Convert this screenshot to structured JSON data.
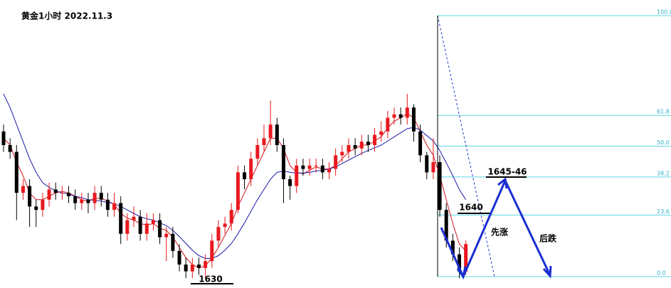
{
  "chart_data": {
    "type": "candlestick",
    "title": "黄金1小时 2022.11.3",
    "ylim": [
      1629.0625,
      1671.25
    ],
    "y2lim": [
      -4.36,
      106
    ],
    "y2ticks": [
      {
        "value": 100,
        "label": "100.0"
      },
      {
        "value": 61.8,
        "label": "61.8"
      },
      {
        "value": 50,
        "label": "50.0"
      },
      {
        "value": 38.2,
        "label": "38.2"
      },
      {
        "value": 23.6,
        "label": "23.6"
      },
      {
        "value": 0,
        "label": "0.0"
      }
    ],
    "fib_color": "#5fd3e3",
    "up_color": "#e8191f",
    "down_color": "#000000",
    "open": [
      1652,
      1650,
      1649,
      1643,
      1644,
      1641,
      1640.5,
      1642,
      1643.5,
      1643,
      1643,
      1642.5,
      1641.5,
      1642,
      1641.5,
      1643,
      1642,
      1640.5,
      1641.5,
      1637,
      1639,
      1639.5,
      1637,
      1638.5,
      1639,
      1636.5,
      1637,
      1634.5,
      1632.5,
      1631.5,
      1632.5,
      1632,
      1633,
      1636,
      1638,
      1638.5,
      1640.5,
      1646,
      1645,
      1648,
      1650,
      1651,
      1653,
      1650,
      1645,
      1644,
      1647,
      1646.5,
      1647,
      1647,
      1646,
      1646.5,
      1648.5,
      1649,
      1650,
      1649.5,
      1650.5,
      1650,
      1651.5,
      1652,
      1654,
      1654.5,
      1654,
      1655.5,
      1652,
      1648.5,
      1646,
      1647.5,
      1640.5,
      1636,
      1634,
      1631.5
    ],
    "high": [
      1653,
      1651,
      1650,
      1645,
      1645,
      1642,
      1643,
      1644.5,
      1644.5,
      1644,
      1644,
      1643.5,
      1643,
      1643,
      1644,
      1644,
      1643,
      1643,
      1642.5,
      1640,
      1641,
      1640.5,
      1640,
      1640,
      1640,
      1638,
      1638,
      1635.5,
      1633.5,
      1633.5,
      1633.5,
      1634,
      1637,
      1639,
      1639.5,
      1641.5,
      1647,
      1647,
      1649,
      1651,
      1653,
      1656.5,
      1654,
      1651,
      1645.5,
      1648,
      1648,
      1648,
      1648,
      1648,
      1647.5,
      1649.5,
      1650,
      1651,
      1651,
      1651.5,
      1651.5,
      1652.5,
      1653.5,
      1655,
      1655.5,
      1655.5,
      1657.5,
      1656,
      1653,
      1649,
      1651,
      1648.5,
      1641.5,
      1637,
      1635,
      1636
    ],
    "low": [
      1649,
      1648,
      1639,
      1642,
      1638,
      1638,
      1639.5,
      1641,
      1642,
      1642,
      1641.5,
      1640.5,
      1640.5,
      1640,
      1640.5,
      1641,
      1639.5,
      1639.5,
      1635.5,
      1636,
      1638,
      1636,
      1636,
      1637.5,
      1635.5,
      1633,
      1633.5,
      1631.5,
      1630.5,
      1630.5,
      1631,
      1630.5,
      1632,
      1635,
      1637,
      1637.5,
      1640,
      1643.5,
      1644,
      1647,
      1649,
      1650,
      1649,
      1641.5,
      1642,
      1643,
      1645.5,
      1645.5,
      1646,
      1645,
      1645,
      1645.5,
      1647.5,
      1648,
      1648.5,
      1648.5,
      1649,
      1649,
      1650.5,
      1651,
      1653,
      1653,
      1653,
      1650.5,
      1647.5,
      1645,
      1645,
      1639.5,
      1635,
      1633,
      1630.5,
      1631
    ],
    "close": [
      1650,
      1649,
      1643,
      1644,
      1641,
      1640.5,
      1642,
      1643.5,
      1643,
      1643,
      1642.5,
      1641.5,
      1642,
      1641.5,
      1643,
      1642,
      1640.5,
      1641.5,
      1637,
      1639,
      1639.5,
      1637,
      1638.5,
      1639,
      1636.5,
      1637,
      1634.5,
      1632.5,
      1631.5,
      1632.5,
      1632,
      1633,
      1636,
      1638,
      1638.5,
      1640.5,
      1646,
      1645,
      1648,
      1650,
      1651,
      1653,
      1650,
      1645,
      1644,
      1647,
      1646.5,
      1647,
      1647,
      1646,
      1646.5,
      1648.5,
      1649,
      1650,
      1649.5,
      1650.5,
      1650,
      1651.5,
      1652,
      1654,
      1654.5,
      1654,
      1655.5,
      1652,
      1648.5,
      1646,
      1647.5,
      1640.5,
      1636,
      1634,
      1631.5,
      1635.5
    ],
    "lines": [
      {
        "color": "#d0141a",
        "values": [
          1651,
          1650,
          1647.5,
          1645.5,
          1643,
          1642,
          1642,
          1642.5,
          1643,
          1643.2,
          1643,
          1642.5,
          1642,
          1641.8,
          1642.2,
          1642.2,
          1641.8,
          1641.3,
          1640,
          1639.3,
          1639,
          1638.5,
          1638.3,
          1638.5,
          1637.8,
          1637.5,
          1636.5,
          1635,
          1633.5,
          1632.5,
          1632,
          1632.3,
          1633.5,
          1635,
          1636.8,
          1638.5,
          1641,
          1643,
          1645,
          1647,
          1649,
          1651,
          1651,
          1649.5,
          1647,
          1646,
          1645.8,
          1646.3,
          1646.8,
          1646.5,
          1646.5,
          1647,
          1648,
          1649,
          1649.5,
          1650,
          1650,
          1650.6,
          1651.2,
          1652.5,
          1653.5,
          1654,
          1654.6,
          1654,
          1652,
          1650,
          1648.5,
          1645.5,
          1642,
          1638.5,
          1635.5,
          1634.5
        ]
      },
      {
        "color": "#1a1aa8",
        "values": [
          1657.5,
          1655.5,
          1653,
          1650.5,
          1648,
          1646,
          1644.5,
          1643.8,
          1643.3,
          1643,
          1642.8,
          1642.5,
          1642.3,
          1642,
          1641.9,
          1641.8,
          1641.6,
          1641.4,
          1641,
          1640.5,
          1640,
          1639.5,
          1639.2,
          1639,
          1638.6,
          1638.2,
          1637.5,
          1636.6,
          1635.6,
          1634.6,
          1633.8,
          1633.4,
          1633.4,
          1633.8,
          1634.6,
          1635.6,
          1637,
          1638.6,
          1640.3,
          1642,
          1643.5,
          1645,
          1646,
          1646.2,
          1646,
          1645.9,
          1645.9,
          1646,
          1646.2,
          1646.3,
          1646.5,
          1646.8,
          1647.3,
          1647.8,
          1648.3,
          1648.8,
          1649.2,
          1649.6,
          1650,
          1650.6,
          1651.2,
          1651.8,
          1652.4,
          1652.6,
          1652.2,
          1651.4,
          1650.6,
          1649.2,
          1647.4,
          1645.5,
          1643.5,
          1642
        ]
      }
    ],
    "annotations": [
      "1630",
      "1640",
      "1645-46",
      "先涨",
      "后跌"
    ]
  }
}
